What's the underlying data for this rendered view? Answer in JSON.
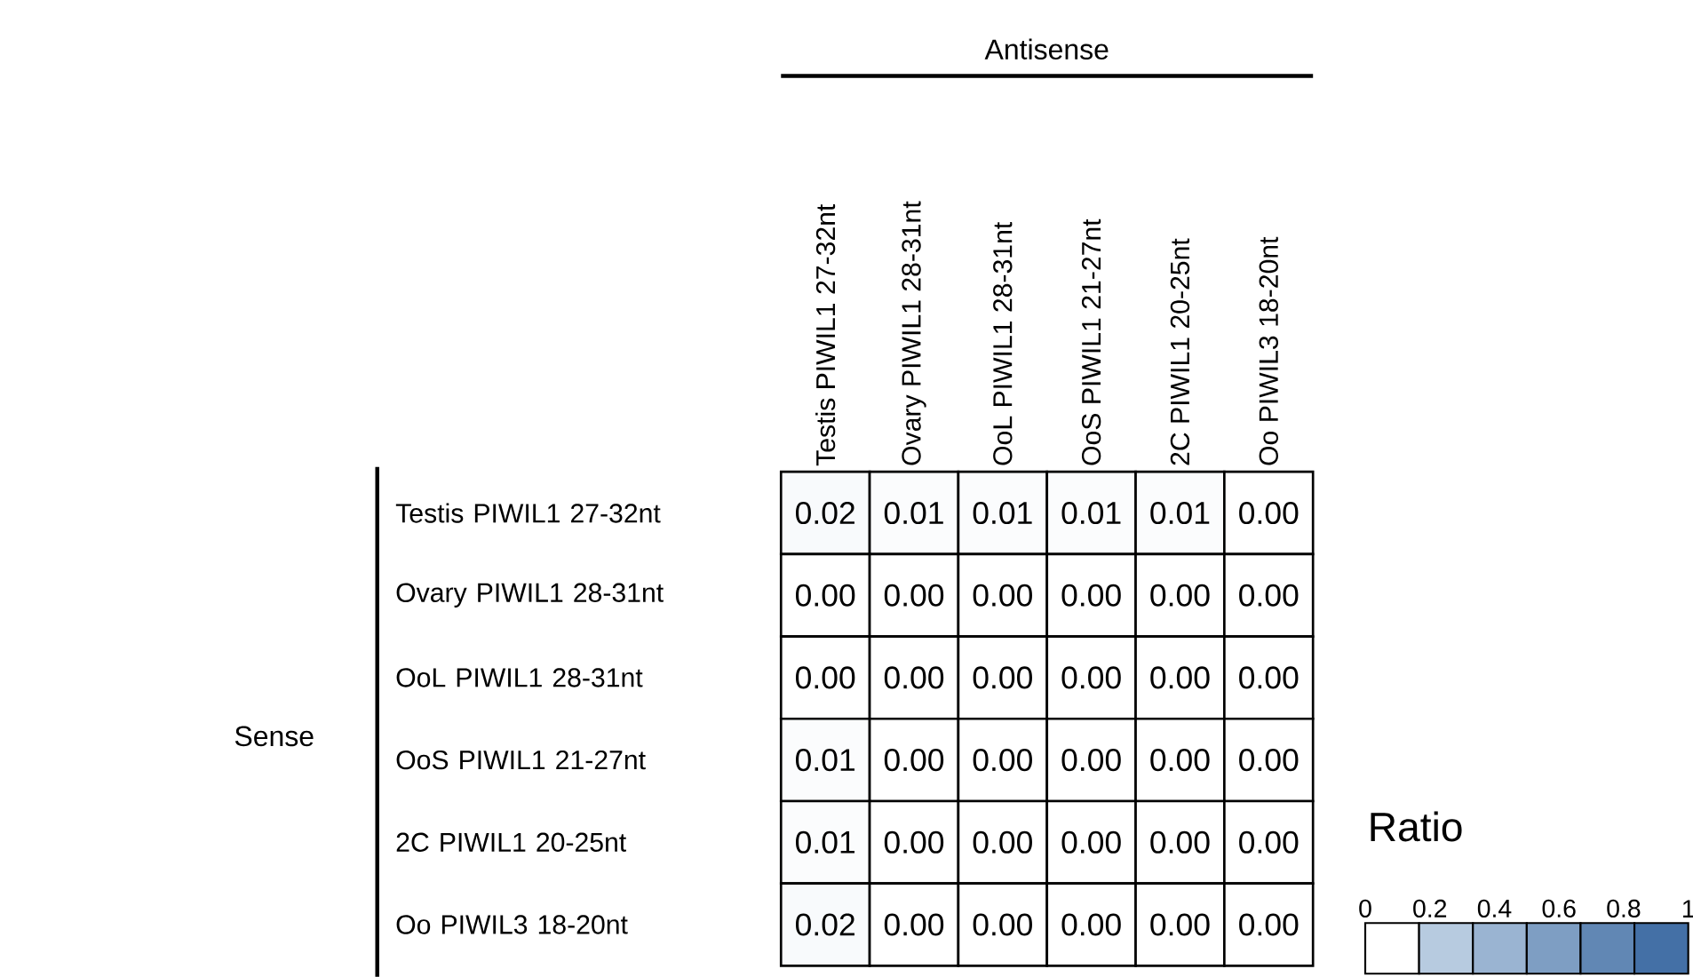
{
  "chart_data": {
    "type": "heatmap",
    "xlabel": "Antisense",
    "ylabel": "Sense",
    "clabel": "Ratio",
    "categories": [
      "Testis PIWIL1 27-32nt",
      "Ovary PIWIL1 28-31nt",
      "OoL PIWIL1 28-31nt",
      "OoS PIWIL1 21-27nt",
      "2C PIWIL1 20-25nt",
      "Oo PIWIL3 18-20nt"
    ],
    "y_categories": [
      "Testis PIWIL1 27-32nt",
      "Ovary PIWIL1 28-31nt",
      "OoL PIWIL1 28-31nt",
      "OoS PIWIL1 21-27nt",
      "2C PIWIL1 20-25nt",
      "Oo PIWIL3 18-20nt"
    ],
    "cells": [
      [
        0.02,
        0.01,
        0.01,
        0.01,
        0.01,
        0.0
      ],
      [
        0.0,
        0.0,
        0.0,
        0.0,
        0.0,
        0.0
      ],
      [
        0.0,
        0.0,
        0.0,
        0.0,
        0.0,
        0.0
      ],
      [
        0.01,
        0.0,
        0.0,
        0.0,
        0.0,
        0.0
      ],
      [
        0.01,
        0.0,
        0.0,
        0.0,
        0.0,
        0.0
      ],
      [
        0.02,
        0.0,
        0.0,
        0.0,
        0.0,
        0.0
      ]
    ],
    "cell_labels": [
      [
        "0.02",
        "0.01",
        "0.01",
        "0.01",
        "0.01",
        "0.00"
      ],
      [
        "0.00",
        "0.00",
        "0.00",
        "0.00",
        "0.00",
        "0.00"
      ],
      [
        "0.00",
        "0.00",
        "0.00",
        "0.00",
        "0.00",
        "0.00"
      ],
      [
        "0.01",
        "0.00",
        "0.00",
        "0.00",
        "0.00",
        "0.00"
      ],
      [
        "0.01",
        "0.00",
        "0.00",
        "0.00",
        "0.00",
        "0.00"
      ],
      [
        "0.02",
        "0.00",
        "0.00",
        "0.00",
        "0.00",
        "0.00"
      ]
    ],
    "clim": [
      0,
      1
    ],
    "cticks": [
      0,
      0.2,
      0.4,
      0.6,
      0.8,
      1
    ]
  }
}
